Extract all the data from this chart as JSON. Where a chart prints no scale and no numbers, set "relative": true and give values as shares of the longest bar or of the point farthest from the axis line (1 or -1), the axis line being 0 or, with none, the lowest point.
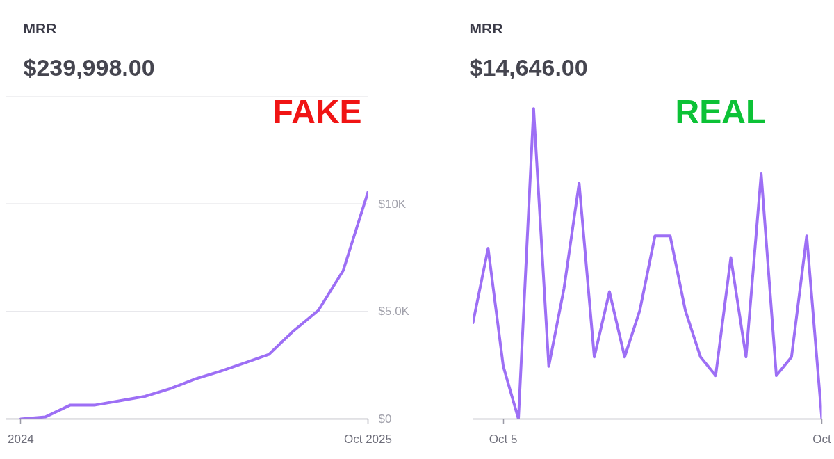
{
  "chart_data": [
    {
      "type": "line",
      "title": "MRR",
      "subtitle": "$239,998.00",
      "categories": [
        "2024",
        null,
        null,
        null,
        null,
        null,
        null,
        null,
        null,
        null,
        null,
        null,
        null,
        null,
        "Oct 2025"
      ],
      "series": [
        {
          "color": "#9d6ff5",
          "values": [
            0,
            100,
            650,
            650,
            850,
            1050,
            1400,
            1850,
            2200,
            2600,
            3000,
            4100,
            5050,
            6900,
            10550
          ]
        }
      ],
      "ylim": [
        0,
        15000
      ],
      "yticks": [
        {
          "value": 0,
          "label": "$0"
        },
        {
          "value": 5000,
          "label": "$5.0K"
        },
        {
          "value": 10000,
          "label": "$10K"
        },
        {
          "value": 15000,
          "label": null
        }
      ],
      "grid": "y",
      "annotations": [
        "FAKE"
      ]
    },
    {
      "type": "line",
      "title": "MRR",
      "subtitle": "$14,646.00",
      "categories": [
        null,
        null,
        "Oct 5",
        null,
        null,
        null,
        null,
        null,
        null,
        null,
        null,
        null,
        null,
        null,
        null,
        null,
        null,
        null,
        null,
        null,
        null,
        null,
        null,
        "Oct"
      ],
      "series": [
        {
          "color": "#9d6ff5",
          "values": [
            0.31,
            0.55,
            0.17,
            0,
            1,
            0.17,
            0.42,
            0.76,
            0.2,
            0.41,
            0.2,
            0.35,
            0.59,
            0.59,
            0.35,
            0.2,
            0.14,
            0.52,
            0.2,
            0.79,
            0.14,
            0.2,
            0.59,
            0
          ]
        }
      ],
      "relative": true,
      "annotations": [
        "REAL"
      ]
    }
  ]
}
